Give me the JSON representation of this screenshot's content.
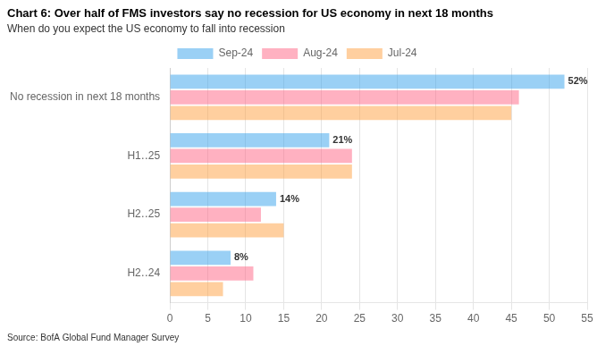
{
  "chart_data": {
    "type": "bar",
    "orientation": "horizontal",
    "title": "Chart 6: Over half of FMS investors say no recession for US economy in next 18 months",
    "subtitle": "When do you expect the US economy to fall into recession",
    "source": "Source: BofA Global Fund Manager Survey",
    "categories": [
      "No recession in next 18 months",
      "H1‥25",
      "H2‥25",
      "H2‥24"
    ],
    "series": [
      {
        "name": "Sep-24",
        "values": [
          52,
          21,
          14,
          8
        ],
        "value_labels": [
          "52%",
          "21%",
          "14%",
          "8%"
        ]
      },
      {
        "name": "Aug-24",
        "values": [
          46,
          24,
          12,
          11
        ]
      },
      {
        "name": "Jul-24",
        "values": [
          45,
          24,
          15,
          7
        ]
      }
    ],
    "xlim": [
      0,
      55
    ],
    "xticks": [
      0,
      5,
      10,
      15,
      20,
      25,
      30,
      35,
      40,
      45,
      50,
      55
    ],
    "grid": true,
    "legend": "top"
  }
}
